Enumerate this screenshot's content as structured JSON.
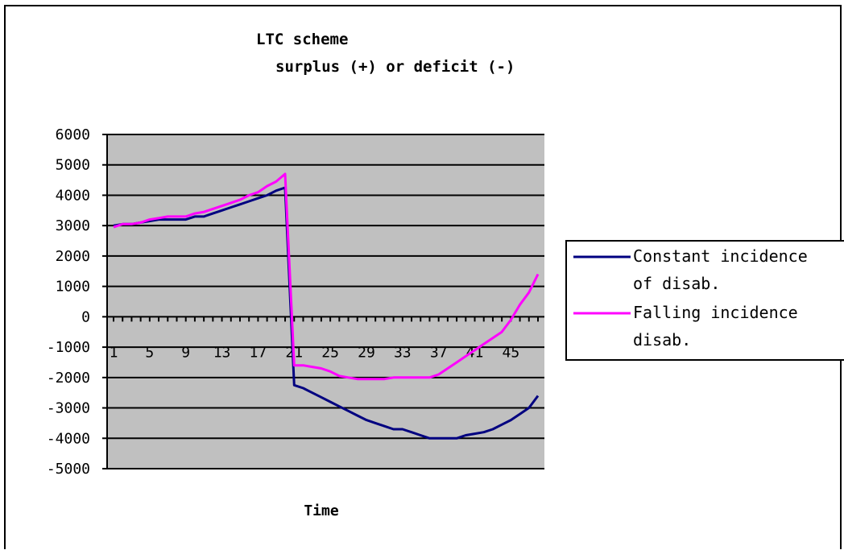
{
  "chart_data": {
    "type": "line",
    "title": "LTC scheme",
    "subtitle": "surplus (+) or deficit (-)",
    "xlabel": "Time",
    "ylabel": "",
    "ylim": [
      -5000,
      6000
    ],
    "xlim": [
      1,
      48
    ],
    "yticks": [
      "6000",
      "5000",
      "4000",
      "3000",
      "2000",
      "1000",
      "0",
      "-1000",
      "-2000",
      "-3000",
      "-4000",
      "-5000"
    ],
    "xticks": [
      "1",
      "5",
      "9",
      "13",
      "17",
      "21",
      "25",
      "29",
      "33",
      "37",
      "41",
      "45"
    ],
    "grid": true,
    "legend_position": "right",
    "plot_background": "#c0c0c0",
    "series": [
      {
        "name": "Constant incidence of disab.",
        "legend_lines": [
          "Constant incidence",
          "of disab."
        ],
        "color": "#000080",
        "x": [
          1,
          2,
          3,
          4,
          5,
          6,
          7,
          8,
          9,
          10,
          11,
          12,
          13,
          14,
          15,
          16,
          17,
          18,
          19,
          20,
          21,
          22,
          23,
          24,
          25,
          26,
          27,
          28,
          29,
          30,
          31,
          32,
          33,
          34,
          35,
          36,
          37,
          38,
          39,
          40,
          41,
          42,
          43,
          44,
          45,
          46,
          47,
          48
        ],
        "values": [
          3000,
          3050,
          3050,
          3100,
          3150,
          3200,
          3200,
          3200,
          3200,
          3300,
          3300,
          3400,
          3500,
          3600,
          3700,
          3800,
          3900,
          4000,
          4150,
          4250,
          -2250,
          -2350,
          -2500,
          -2650,
          -2800,
          -2950,
          -3100,
          -3250,
          -3400,
          -3500,
          -3600,
          -3700,
          -3700,
          -3800,
          -3900,
          -4000,
          -4000,
          -4000,
          -4000,
          -3900,
          -3850,
          -3800,
          -3700,
          -3550,
          -3400,
          -3200,
          -3000,
          -2600
        ]
      },
      {
        "name": "Falling incidence disab.",
        "legend_lines": [
          "Falling incidence",
          "disab."
        ],
        "color": "#ff00ff",
        "x": [
          1,
          2,
          3,
          4,
          5,
          6,
          7,
          8,
          9,
          10,
          11,
          12,
          13,
          14,
          15,
          16,
          17,
          18,
          19,
          20,
          21,
          22,
          23,
          24,
          25,
          26,
          27,
          28,
          29,
          30,
          31,
          32,
          33,
          34,
          35,
          36,
          37,
          38,
          39,
          40,
          41,
          42,
          43,
          44,
          45,
          46,
          47,
          48
        ],
        "values": [
          2950,
          3050,
          3050,
          3100,
          3200,
          3250,
          3300,
          3300,
          3300,
          3400,
          3450,
          3550,
          3650,
          3750,
          3850,
          4000,
          4100,
          4300,
          4450,
          4700,
          -1600,
          -1600,
          -1650,
          -1700,
          -1800,
          -1950,
          -2000,
          -2050,
          -2050,
          -2050,
          -2050,
          -2000,
          -2000,
          -2000,
          -2000,
          -2000,
          -1900,
          -1700,
          -1500,
          -1300,
          -1100,
          -900,
          -700,
          -500,
          -100,
          400,
          800,
          1400
        ]
      }
    ]
  }
}
